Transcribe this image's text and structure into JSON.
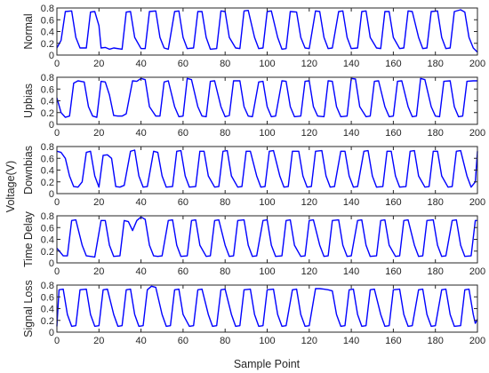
{
  "figure": {
    "xlabel": "Sample Point",
    "ylabel": "Voltage(V)",
    "line_color": "#0000ff"
  },
  "chart_data": [
    {
      "type": "line",
      "ylabel": "Normal",
      "xlim": [
        0,
        200
      ],
      "ylim": [
        0,
        0.8
      ],
      "xticks": [
        0,
        20,
        40,
        60,
        80,
        100,
        120,
        140,
        160,
        180,
        200
      ],
      "yticks": [
        0,
        0.2,
        0.4,
        0.6,
        0.8
      ],
      "grid": false,
      "series": [
        {
          "color": "#0000ff",
          "x": [
            0,
            2,
            4,
            7,
            9,
            11,
            14,
            16,
            18,
            20,
            21,
            23,
            25,
            27,
            31,
            33,
            35,
            37,
            40,
            42,
            44,
            47,
            49,
            51,
            53,
            56,
            58,
            60,
            62,
            65,
            67,
            69,
            71,
            73,
            76,
            78,
            80,
            82,
            85,
            87,
            89,
            91,
            94,
            96,
            98,
            100,
            102,
            105,
            107,
            109,
            111,
            114,
            116,
            118,
            120,
            123,
            125,
            127,
            129,
            131,
            134,
            136,
            138,
            140,
            143,
            145,
            147,
            149,
            152,
            154,
            156,
            158,
            160,
            163,
            165,
            167,
            169,
            172,
            174,
            176,
            178,
            181,
            183,
            185,
            187,
            189,
            192,
            194,
            196,
            198,
            200
          ],
          "y": [
            0.12,
            0.25,
            0.74,
            0.75,
            0.3,
            0.12,
            0.12,
            0.73,
            0.74,
            0.5,
            0.12,
            0.13,
            0.1,
            0.12,
            0.1,
            0.73,
            0.74,
            0.3,
            0.11,
            0.11,
            0.74,
            0.75,
            0.3,
            0.12,
            0.1,
            0.74,
            0.75,
            0.3,
            0.11,
            0.12,
            0.74,
            0.74,
            0.3,
            0.1,
            0.11,
            0.75,
            0.74,
            0.3,
            0.12,
            0.11,
            0.75,
            0.76,
            0.3,
            0.11,
            0.12,
            0.74,
            0.75,
            0.3,
            0.1,
            0.11,
            0.74,
            0.73,
            0.3,
            0.12,
            0.11,
            0.75,
            0.74,
            0.3,
            0.11,
            0.12,
            0.74,
            0.75,
            0.3,
            0.11,
            0.12,
            0.74,
            0.75,
            0.3,
            0.12,
            0.11,
            0.74,
            0.74,
            0.3,
            0.11,
            0.12,
            0.75,
            0.74,
            0.3,
            0.11,
            0.12,
            0.74,
            0.75,
            0.3,
            0.11,
            0.12,
            0.74,
            0.77,
            0.73,
            0.3,
            0.12,
            0.05
          ]
        }
      ]
    },
    {
      "type": "line",
      "ylabel": "Upbias",
      "xlim": [
        0,
        200
      ],
      "ylim": [
        0,
        0.8
      ],
      "xticks": [
        0,
        20,
        40,
        60,
        80,
        100,
        120,
        140,
        160,
        180,
        200
      ],
      "yticks": [
        0,
        0.2,
        0.4,
        0.6,
        0.8
      ],
      "grid": false,
      "series": [
        {
          "color": "#0000ff",
          "x": [
            0,
            2,
            4,
            6,
            8,
            10,
            13,
            15,
            17,
            19,
            21,
            23,
            25,
            27,
            29,
            31,
            33,
            36,
            38,
            40,
            42,
            44,
            47,
            49,
            51,
            53,
            56,
            58,
            60,
            62,
            64,
            67,
            69,
            71,
            73,
            75,
            78,
            80,
            82,
            84,
            87,
            89,
            91,
            93,
            96,
            98,
            100,
            102,
            104,
            107,
            109,
            111,
            113,
            116,
            118,
            120,
            122,
            124,
            127,
            129,
            131,
            133,
            135,
            138,
            140,
            142,
            144,
            147,
            149,
            151,
            153,
            156,
            158,
            160,
            162,
            164,
            167,
            169,
            171,
            173,
            175,
            178,
            180,
            182,
            184,
            187,
            189,
            191,
            193,
            195,
            198,
            200
          ],
          "y": [
            0.45,
            0.2,
            0.12,
            0.14,
            0.7,
            0.74,
            0.72,
            0.3,
            0.14,
            0.12,
            0.73,
            0.72,
            0.5,
            0.15,
            0.14,
            0.14,
            0.18,
            0.74,
            0.73,
            0.78,
            0.76,
            0.3,
            0.14,
            0.14,
            0.72,
            0.74,
            0.3,
            0.13,
            0.14,
            0.78,
            0.76,
            0.3,
            0.14,
            0.13,
            0.73,
            0.74,
            0.3,
            0.13,
            0.15,
            0.74,
            0.74,
            0.3,
            0.14,
            0.13,
            0.72,
            0.73,
            0.3,
            0.13,
            0.14,
            0.74,
            0.73,
            0.3,
            0.13,
            0.14,
            0.73,
            0.74,
            0.3,
            0.14,
            0.13,
            0.74,
            0.73,
            0.3,
            0.13,
            0.14,
            0.78,
            0.77,
            0.3,
            0.13,
            0.14,
            0.73,
            0.74,
            0.3,
            0.13,
            0.14,
            0.73,
            0.74,
            0.3,
            0.13,
            0.14,
            0.78,
            0.76,
            0.3,
            0.14,
            0.13,
            0.73,
            0.74,
            0.3,
            0.13,
            0.14,
            0.73,
            0.74,
            0.74
          ]
        }
      ]
    },
    {
      "type": "line",
      "ylabel": "Downbias",
      "xlim": [
        0,
        200
      ],
      "ylim": [
        0,
        0.8
      ],
      "xticks": [
        0,
        20,
        40,
        60,
        80,
        100,
        120,
        140,
        160,
        180,
        200
      ],
      "yticks": [
        0,
        0.2,
        0.4,
        0.6,
        0.8
      ],
      "grid": false,
      "series": [
        {
          "color": "#0000ff",
          "x": [
            0,
            2,
            4,
            6,
            8,
            10,
            12,
            14,
            16,
            18,
            20,
            22,
            24,
            26,
            28,
            30,
            32,
            35,
            37,
            39,
            41,
            43,
            46,
            48,
            50,
            52,
            55,
            57,
            59,
            61,
            63,
            66,
            68,
            70,
            72,
            75,
            77,
            79,
            81,
            83,
            86,
            88,
            90,
            92,
            95,
            97,
            99,
            101,
            103,
            106,
            108,
            110,
            112,
            115,
            117,
            119,
            121,
            123,
            126,
            128,
            130,
            132,
            135,
            137,
            139,
            141,
            143,
            146,
            148,
            150,
            152,
            155,
            157,
            159,
            161,
            163,
            166,
            168,
            170,
            172,
            175,
            177,
            179,
            181,
            183,
            186,
            188,
            190,
            192,
            195,
            197,
            199,
            200
          ],
          "y": [
            0.72,
            0.7,
            0.6,
            0.3,
            0.12,
            0.11,
            0.2,
            0.7,
            0.72,
            0.3,
            0.11,
            0.65,
            0.66,
            0.6,
            0.12,
            0.11,
            0.14,
            0.72,
            0.74,
            0.3,
            0.11,
            0.12,
            0.72,
            0.7,
            0.3,
            0.11,
            0.12,
            0.72,
            0.73,
            0.3,
            0.11,
            0.12,
            0.72,
            0.72,
            0.3,
            0.11,
            0.12,
            0.72,
            0.73,
            0.3,
            0.11,
            0.12,
            0.72,
            0.72,
            0.3,
            0.11,
            0.12,
            0.72,
            0.73,
            0.3,
            0.11,
            0.12,
            0.72,
            0.72,
            0.3,
            0.11,
            0.12,
            0.72,
            0.73,
            0.3,
            0.11,
            0.12,
            0.72,
            0.72,
            0.3,
            0.11,
            0.12,
            0.72,
            0.73,
            0.3,
            0.11,
            0.12,
            0.72,
            0.72,
            0.3,
            0.11,
            0.12,
            0.72,
            0.73,
            0.3,
            0.11,
            0.12,
            0.72,
            0.72,
            0.3,
            0.11,
            0.12,
            0.72,
            0.73,
            0.3,
            0.11,
            0.2,
            0.72
          ]
        }
      ]
    },
    {
      "type": "line",
      "ylabel": "Time Delay",
      "xlim": [
        0,
        200
      ],
      "ylim": [
        0,
        0.8
      ],
      "xticks": [
        0,
        20,
        40,
        60,
        80,
        100,
        120,
        140,
        160,
        180,
        200
      ],
      "yticks": [
        0,
        0.2,
        0.4,
        0.6,
        0.8
      ],
      "grid": false,
      "series": [
        {
          "color": "#0000ff",
          "x": [
            0,
            3,
            5,
            7,
            9,
            12,
            14,
            16,
            18,
            21,
            23,
            25,
            27,
            30,
            32,
            34,
            36,
            38,
            40,
            42,
            44,
            46,
            48,
            50,
            53,
            55,
            57,
            59,
            62,
            64,
            66,
            68,
            71,
            73,
            75,
            77,
            80,
            82,
            84,
            86,
            89,
            91,
            93,
            95,
            98,
            100,
            102,
            104,
            107,
            109,
            111,
            113,
            116,
            118,
            120,
            122,
            125,
            127,
            129,
            131,
            134,
            136,
            138,
            140,
            143,
            145,
            147,
            149,
            152,
            154,
            156,
            158,
            161,
            163,
            165,
            167,
            170,
            172,
            174,
            176,
            179,
            181,
            183,
            185,
            188,
            190,
            192,
            194,
            197,
            199,
            200
          ],
          "y": [
            0.25,
            0.12,
            0.12,
            0.72,
            0.73,
            0.3,
            0.12,
            0.11,
            0.1,
            0.72,
            0.72,
            0.3,
            0.11,
            0.12,
            0.72,
            0.7,
            0.55,
            0.72,
            0.78,
            0.74,
            0.3,
            0.12,
            0.11,
            0.12,
            0.72,
            0.73,
            0.3,
            0.11,
            0.12,
            0.72,
            0.73,
            0.3,
            0.11,
            0.12,
            0.72,
            0.73,
            0.3,
            0.11,
            0.12,
            0.72,
            0.73,
            0.3,
            0.11,
            0.12,
            0.72,
            0.73,
            0.3,
            0.11,
            0.12,
            0.72,
            0.73,
            0.3,
            0.11,
            0.12,
            0.72,
            0.73,
            0.3,
            0.11,
            0.12,
            0.72,
            0.73,
            0.3,
            0.11,
            0.12,
            0.72,
            0.73,
            0.3,
            0.11,
            0.12,
            0.72,
            0.73,
            0.3,
            0.11,
            0.12,
            0.72,
            0.73,
            0.3,
            0.11,
            0.12,
            0.72,
            0.73,
            0.3,
            0.11,
            0.12,
            0.72,
            0.73,
            0.3,
            0.11,
            0.12,
            0.72,
            0.72
          ]
        }
      ]
    },
    {
      "type": "line",
      "ylabel": "Signal Loss",
      "xlim": [
        0,
        200
      ],
      "ylim": [
        0,
        0.8
      ],
      "xticks": [
        0,
        20,
        40,
        60,
        80,
        100,
        120,
        140,
        160,
        180,
        200
      ],
      "yticks": [
        0,
        0.2,
        0.4,
        0.6,
        0.8
      ],
      "grid": false,
      "series": [
        {
          "color": "#0000ff",
          "x": [
            0,
            1,
            3,
            5,
            7,
            9,
            11,
            14,
            16,
            18,
            20,
            22,
            24,
            27,
            29,
            31,
            33,
            35,
            37,
            39,
            41,
            43,
            45,
            47,
            50,
            52,
            54,
            56,
            58,
            60,
            63,
            65,
            67,
            69,
            72,
            74,
            76,
            78,
            80,
            83,
            85,
            87,
            89,
            92,
            94,
            96,
            98,
            100,
            103,
            105,
            107,
            109,
            112,
            114,
            116,
            118,
            120,
            123,
            125,
            127,
            129,
            131,
            133,
            135,
            137,
            139,
            141,
            143,
            145,
            147,
            149,
            151,
            154,
            156,
            158,
            160,
            163,
            165,
            167,
            169,
            172,
            174,
            176,
            178,
            180,
            183,
            185,
            187,
            189,
            192,
            194,
            196,
            198,
            199,
            200
          ],
          "y": [
            0.1,
            0.72,
            0.73,
            0.3,
            0.1,
            0.11,
            0.72,
            0.73,
            0.3,
            0.1,
            0.11,
            0.72,
            0.73,
            0.3,
            0.1,
            0.11,
            0.72,
            0.73,
            0.3,
            0.1,
            0.11,
            0.72,
            0.78,
            0.76,
            0.3,
            0.1,
            0.11,
            0.72,
            0.73,
            0.3,
            0.1,
            0.11,
            0.72,
            0.73,
            0.3,
            0.1,
            0.11,
            0.72,
            0.73,
            0.3,
            0.1,
            0.11,
            0.72,
            0.73,
            0.3,
            0.1,
            0.11,
            0.72,
            0.73,
            0.3,
            0.1,
            0.11,
            0.72,
            0.73,
            0.3,
            0.1,
            0.11,
            0.74,
            0.74,
            0.73,
            0.72,
            0.7,
            0.3,
            0.1,
            0.11,
            0.72,
            0.73,
            0.3,
            0.1,
            0.11,
            0.72,
            0.73,
            0.3,
            0.1,
            0.11,
            0.72,
            0.73,
            0.3,
            0.1,
            0.11,
            0.72,
            0.73,
            0.3,
            0.1,
            0.11,
            0.72,
            0.73,
            0.3,
            0.1,
            0.11,
            0.72,
            0.73,
            0.3,
            0.15,
            0.22
          ]
        }
      ]
    }
  ]
}
